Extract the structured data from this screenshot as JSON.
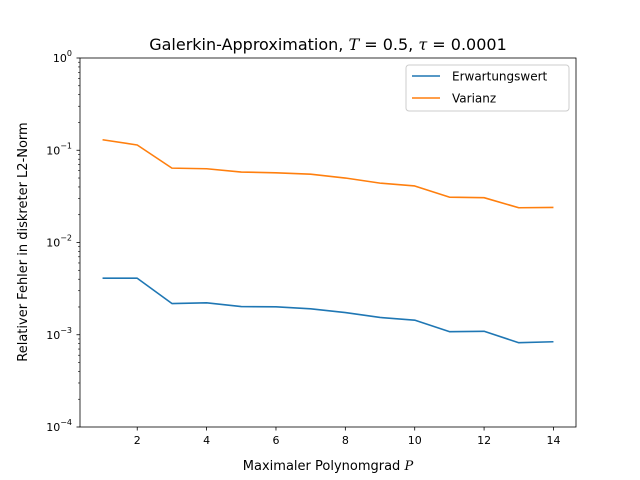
{
  "chart_data": {
    "type": "line",
    "title": "Galerkin-Approximation, T = 0.5, τ = 0.0001",
    "title_parts": {
      "prefix": "Galerkin-Approximation, ",
      "t_sym": "T",
      "t_val": " = 0.5, ",
      "tau_sym": "τ",
      "tau_val": " = 0.0001"
    },
    "xlabel": "Maximaler Polynomgrad P",
    "xlabel_parts": {
      "text": "Maximaler Polynomgrad ",
      "sym": "P"
    },
    "ylabel": "Relativer Fehler in diskreter L2-Norm",
    "yscale": "log",
    "xlim": [
      0.35,
      14.65
    ],
    "ylim": [
      0.0001,
      1
    ],
    "xticks": [
      2,
      4,
      6,
      8,
      10,
      12,
      14
    ],
    "yticks": [
      {
        "value": 0.0001,
        "base": "10",
        "exp": "−4"
      },
      {
        "value": 0.001,
        "base": "10",
        "exp": "−3"
      },
      {
        "value": 0.01,
        "base": "10",
        "exp": "−2"
      },
      {
        "value": 0.1,
        "base": "10",
        "exp": "−1"
      },
      {
        "value": 1,
        "base": "10",
        "exp": "0"
      }
    ],
    "legend_position": "top-right",
    "grid": false,
    "x": [
      1,
      2,
      3,
      4,
      5,
      6,
      7,
      8,
      9,
      10,
      11,
      12,
      13,
      14
    ],
    "series": [
      {
        "name": "Erwartungswert",
        "color": "#1f77b4",
        "values": [
          0.0041,
          0.0041,
          0.00218,
          0.00222,
          0.00202,
          0.00201,
          0.00191,
          0.00174,
          0.00154,
          0.00144,
          0.00108,
          0.00109,
          0.00082,
          0.00084
        ]
      },
      {
        "name": "Varianz",
        "color": "#ff7f0e",
        "values": [
          0.13,
          0.114,
          0.064,
          0.063,
          0.058,
          0.057,
          0.055,
          0.05,
          0.044,
          0.041,
          0.031,
          0.0306,
          0.0238,
          0.024
        ]
      }
    ]
  }
}
